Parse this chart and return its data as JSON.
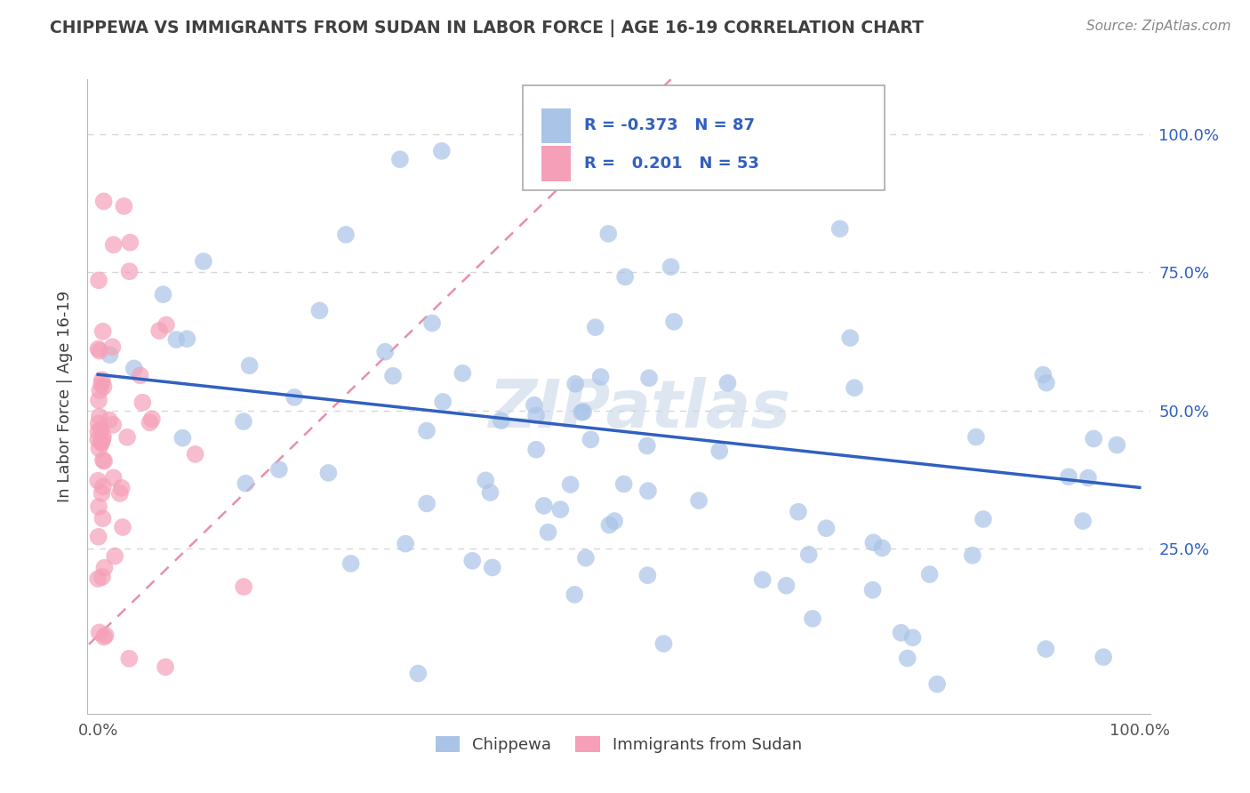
{
  "title": "CHIPPEWA VS IMMIGRANTS FROM SUDAN IN LABOR FORCE | AGE 16-19 CORRELATION CHART",
  "source": "Source: ZipAtlas.com",
  "ylabel": "In Labor Force | Age 16-19",
  "xlim": [
    0.0,
    1.0
  ],
  "ylim": [
    -0.05,
    1.1
  ],
  "chippewa_R": -0.373,
  "chippewa_N": 87,
  "sudan_R": 0.201,
  "sudan_N": 53,
  "chippewa_color": "#aac4e8",
  "sudan_color": "#f5a0b8",
  "chippewa_line_color": "#3060c0",
  "sudan_line_color": "#e06080",
  "watermark": "ZIPatlas",
  "legend_label_chippewa": "Chippewa",
  "legend_label_sudan": "Immigrants from Sudan",
  "background_color": "#ffffff",
  "grid_color": "#cccccc",
  "title_color": "#404040",
  "source_color": "#888888",
  "axis_label_color": "#3060c0"
}
